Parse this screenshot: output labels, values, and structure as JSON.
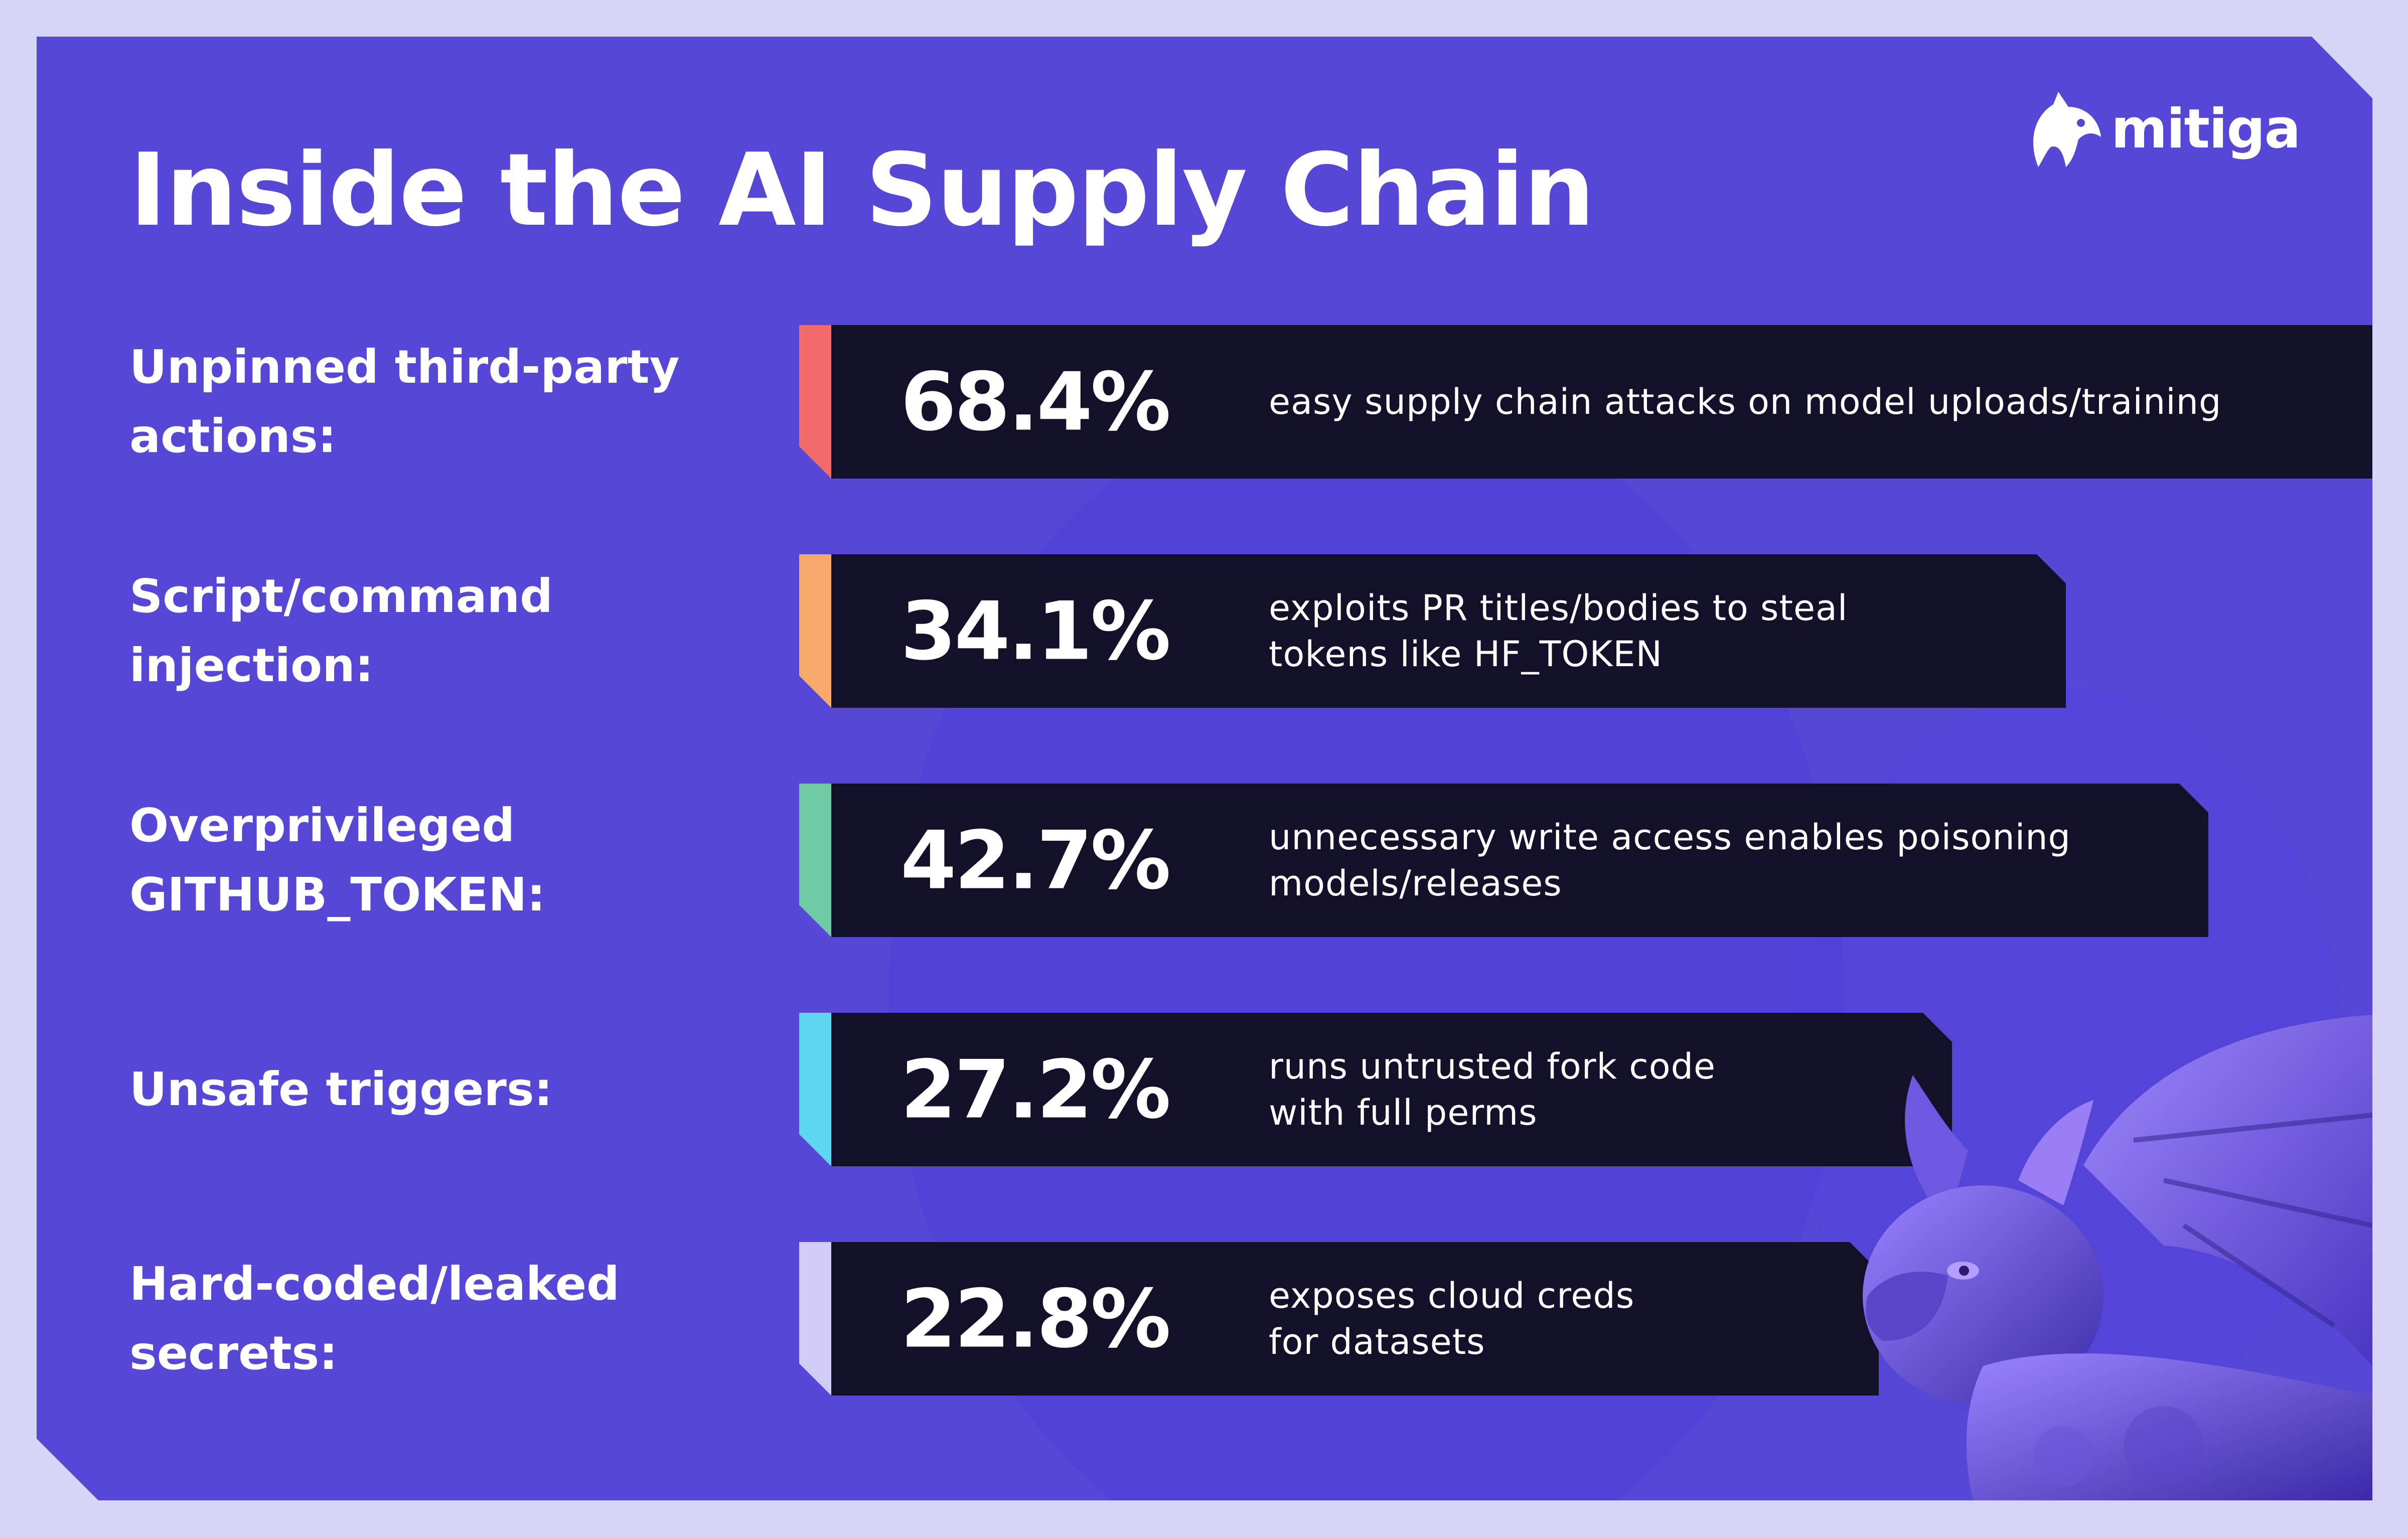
{
  "header": {
    "title": "Inside the AI Supply Chain",
    "logo_text": "mitiga"
  },
  "colors": {
    "background": "#5647d6",
    "page": "#d6d5f6",
    "bar": "#121129"
  },
  "chart_data": {
    "type": "bar",
    "orientation": "horizontal",
    "title": "Inside the AI Supply Chain",
    "categories": [
      "Unpinned third-party actions:",
      "Script/command injection:",
      "Overprivileged GITHUB_TOKEN:",
      "Unsafe triggers:",
      "Hard-coded/leaked secrets:"
    ],
    "values": [
      68.4,
      34.1,
      42.7,
      27.2,
      22.8
    ],
    "value_labels": [
      "68.4%",
      "34.1%",
      "42.7%",
      "27.2%",
      "22.8%"
    ],
    "descriptions": [
      "easy supply chain attacks on model uploads/training",
      "exploits PR titles/bodies to steal\ntokens like HF_TOKEN",
      "unnecessary write access enables poisoning\nmodels/releases",
      "runs untrusted fork code\nwith full perms",
      "exposes cloud creds\nfor datasets"
    ],
    "accent_colors": [
      "#f26b6b",
      "#f7a96b",
      "#6ec9a4",
      "#5fd6f0",
      "#cfcdf7"
    ],
    "xlim": [
      0,
      100
    ],
    "grid": false,
    "legend": "none"
  }
}
